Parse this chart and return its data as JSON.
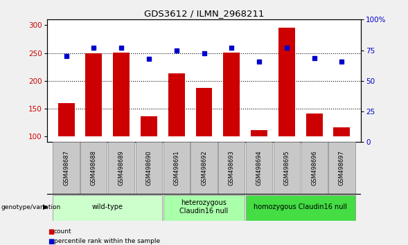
{
  "title": "GDS3612 / ILMN_2968211",
  "samples": [
    "GSM498687",
    "GSM498688",
    "GSM498689",
    "GSM498690",
    "GSM498691",
    "GSM498692",
    "GSM498693",
    "GSM498694",
    "GSM498695",
    "GSM498696",
    "GSM498697"
  ],
  "bar_values": [
    160,
    250,
    251,
    137,
    213,
    187,
    251,
    112,
    295,
    141,
    117
  ],
  "dot_values": [
    245,
    260,
    260,
    240,
    254,
    249,
    260,
    235,
    260,
    241,
    235
  ],
  "bar_color": "#cc0000",
  "dot_color": "#0000cc",
  "ylim_left": [
    90,
    310
  ],
  "ylim_right": [
    0,
    100
  ],
  "yticks_left": [
    100,
    150,
    200,
    250,
    300
  ],
  "yticks_right": [
    0,
    25,
    50,
    75,
    100
  ],
  "ytick_labels_right": [
    "0",
    "25",
    "50",
    "75",
    "100%"
  ],
  "hlines": [
    150,
    200,
    250
  ],
  "groups": [
    {
      "label": "wild-type",
      "indices": [
        0,
        3
      ],
      "color": "#ccffcc"
    },
    {
      "label": "heterozygous\nClaudin16 null",
      "indices": [
        4,
        6
      ],
      "color": "#aaffaa"
    },
    {
      "label": "homozygous Claudin16 null",
      "indices": [
        7,
        10
      ],
      "color": "#44dd44"
    }
  ],
  "sample_box_color": "#c8c8c8",
  "genotype_label": "genotype/variation",
  "legend_count": "count",
  "legend_percentile": "percentile rank within the sample",
  "fig_bg": "#f0f0f0"
}
